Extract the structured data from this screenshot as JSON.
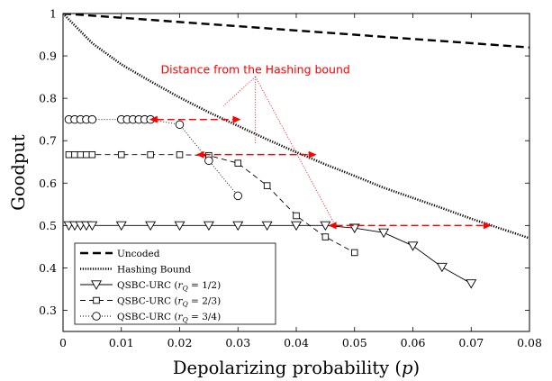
{
  "colors": {
    "axis": "#000000",
    "series": "#000000",
    "annotation": "#ff0000",
    "background": "#ffffff"
  },
  "chart_data": {
    "type": "line",
    "title": "",
    "xlabel": "Depolarizing probability (p)",
    "ylabel": "Goodput",
    "xlim": [
      0,
      0.08
    ],
    "ylim": [
      0.25,
      1.0
    ],
    "x_ticks": [
      0,
      0.01,
      0.02,
      0.03,
      0.04,
      0.05,
      0.06,
      0.07,
      0.08
    ],
    "x_tick_labels": [
      "0",
      "0.01",
      "0.02",
      "0.03",
      "0.04",
      "0.05",
      "0.06",
      "0.07",
      "0.08"
    ],
    "y_ticks": [
      0.3,
      0.4,
      0.5,
      0.6,
      0.7,
      0.8,
      0.9,
      1.0
    ],
    "y_tick_labels": [
      "0.3",
      "0.4",
      "0.5",
      "0.6",
      "0.7",
      "0.8",
      "0.9",
      "1"
    ],
    "grid": false,
    "legend_position": "bottom-left",
    "series": [
      {
        "name": "Uncoded",
        "style": "dashed",
        "marker": "none",
        "x": [
          0,
          0.08
        ],
        "y": [
          1.0,
          0.92
        ]
      },
      {
        "name": "Hashing Bound",
        "style": "dotted-thick",
        "marker": "none",
        "x": [
          0,
          0.005,
          0.01,
          0.015,
          0.02,
          0.025,
          0.03,
          0.035,
          0.04,
          0.045,
          0.05,
          0.055,
          0.06,
          0.065,
          0.07,
          0.075,
          0.08
        ],
        "y": [
          1.0,
          0.93,
          0.88,
          0.84,
          0.802,
          0.767,
          0.735,
          0.703,
          0.673,
          0.644,
          0.617,
          0.589,
          0.565,
          0.541,
          0.516,
          0.493,
          0.47
        ]
      },
      {
        "name": "QSBC-URC (r_Q = 1/2)",
        "legend_prefix": "QSBC-URC (",
        "legend_sub_r": "r",
        "legend_sub_q": "Q",
        "legend_suffix": " = 1/2)",
        "style": "solid",
        "marker": "triangle-down",
        "x": [
          0.001,
          0.002,
          0.003,
          0.004,
          0.005,
          0.01,
          0.015,
          0.02,
          0.025,
          0.03,
          0.035,
          0.04,
          0.045,
          0.05,
          0.055,
          0.06,
          0.065,
          0.07
        ],
        "y": [
          0.5,
          0.5,
          0.5,
          0.5,
          0.5,
          0.5,
          0.5,
          0.5,
          0.5,
          0.5,
          0.5,
          0.5,
          0.5,
          0.494,
          0.483,
          0.452,
          0.402,
          0.363
        ]
      },
      {
        "name": "QSBC-URC (r_Q = 2/3)",
        "legend_prefix": "QSBC-URC (",
        "legend_sub_r": "r",
        "legend_sub_q": "Q",
        "legend_suffix": " = 2/3)",
        "style": "dashed",
        "marker": "square",
        "x": [
          0.001,
          0.002,
          0.003,
          0.004,
          0.005,
          0.01,
          0.015,
          0.02,
          0.025,
          0.03,
          0.035,
          0.04,
          0.045,
          0.05
        ],
        "y": [
          0.667,
          0.667,
          0.667,
          0.667,
          0.667,
          0.667,
          0.667,
          0.667,
          0.665,
          0.647,
          0.594,
          0.523,
          0.473,
          0.436
        ]
      },
      {
        "name": "QSBC-URC (r_Q = 3/4)",
        "legend_prefix": "QSBC-URC (",
        "legend_sub_r": "r",
        "legend_sub_q": "Q",
        "legend_suffix": " = 3/4)",
        "style": "dotted",
        "marker": "circle",
        "x": [
          0.001,
          0.002,
          0.003,
          0.004,
          0.005,
          0.01,
          0.011,
          0.012,
          0.013,
          0.014,
          0.015,
          0.02,
          0.025,
          0.03
        ],
        "y": [
          0.75,
          0.75,
          0.75,
          0.75,
          0.75,
          0.75,
          0.75,
          0.75,
          0.75,
          0.75,
          0.75,
          0.738,
          0.653,
          0.57
        ]
      }
    ],
    "annotations": [
      {
        "text": "Distance from the Hashing bound",
        "x": 0.033,
        "y": 0.868,
        "pointers": [
          {
            "x": 0.0275,
            "y": 0.782
          },
          {
            "x": 0.033,
            "y": 0.69
          },
          {
            "x": 0.0465,
            "y": 0.505
          }
        ]
      }
    ],
    "distance_arrows": [
      {
        "y": 0.75,
        "x_from": 0.0148,
        "x_to": 0.0305
      },
      {
        "y": 0.667,
        "x_from": 0.0228,
        "x_to": 0.0435
      },
      {
        "y": 0.5,
        "x_from": 0.0455,
        "x_to": 0.0735
      }
    ]
  }
}
